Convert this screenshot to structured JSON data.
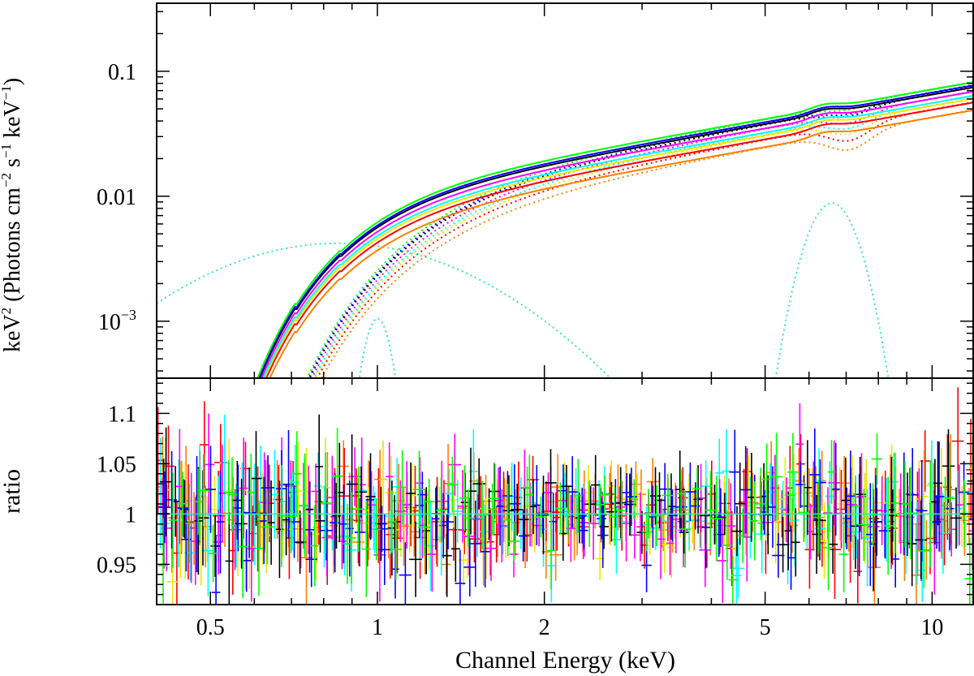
{
  "chart_data": {
    "type": "line",
    "xlabel": "Channel Energy (keV)",
    "xscale": "log",
    "xlim": [
      0.4,
      11.9
    ],
    "x_ticks": [
      {
        "value": 0.5,
        "label": "0.5"
      },
      {
        "value": 1,
        "label": "1"
      },
      {
        "value": 2,
        "label": "2"
      },
      {
        "value": 5,
        "label": "5"
      },
      {
        "value": 10,
        "label": "10"
      }
    ],
    "top_panel": {
      "ylabel_parts": [
        "keV",
        "2",
        " (Photons cm",
        "−2",
        " s",
        "−1",
        " keV",
        "−1",
        ")"
      ],
      "yscale": "log",
      "ylim": [
        0.00035,
        0.35
      ],
      "y_tick_labels": [
        {
          "value": 0.1,
          "label": "0.1"
        },
        {
          "value": 0.01,
          "label": "0.01"
        }
      ],
      "y_tick_exponent": {
        "value": 0.001,
        "base": "10",
        "exp": "−3"
      },
      "series": [
        {
          "name": "orange",
          "color": "#ff7f00",
          "norm": 0.0105,
          "dip_ev": 0.28
        },
        {
          "name": "red",
          "color": "#ff0000",
          "norm": 0.0121,
          "dip_ev": 0.26
        },
        {
          "name": "yellow",
          "color": "#e8e800",
          "norm": 0.013,
          "dip_ev": 0.22
        },
        {
          "name": "cyan",
          "color": "#00ffff",
          "norm": 0.0137,
          "dip_ev": 0.18
        },
        {
          "name": "magenta",
          "color": "#ff00ff",
          "norm": 0.0148,
          "dip_ev": 0.16
        },
        {
          "name": "black",
          "color": "#000000",
          "norm": 0.016,
          "dip_ev": 0.12
        },
        {
          "name": "blue",
          "color": "#0000ff",
          "norm": 0.0166,
          "dip_ev": 0.12
        },
        {
          "name": "green",
          "color": "#00ff00",
          "norm": 0.0176,
          "dip_ev": 0.1
        }
      ],
      "emission_lines": [
        {
          "name": "line-0.8keV",
          "energy_keV": 0.85,
          "peak": 0.0042,
          "sigma_dex": 0.22,
          "color": "#33e8aa"
        },
        {
          "name": "line-1keV",
          "energy_keV": 1.0,
          "peak": 0.00105,
          "sigma_dex": 0.022,
          "color": "#33e8aa"
        },
        {
          "name": "line-6.6keV",
          "energy_keV": 6.6,
          "peak": 0.0088,
          "sigma_dex": 0.04,
          "color": "#33e8aa"
        }
      ]
    },
    "bottom_panel": {
      "ylabel": "ratio",
      "ylim": [
        0.91,
        1.135
      ],
      "y_ticks": [
        {
          "value": 0.95,
          "label": "0.95"
        },
        {
          "value": 1,
          "label": "1"
        },
        {
          "value": 1.05,
          "label": "1.05"
        },
        {
          "value": 1.1,
          "label": "1.1"
        }
      ],
      "reference_value": 1.0,
      "residual_scatter": 0.04,
      "points_per_series": 90
    }
  }
}
